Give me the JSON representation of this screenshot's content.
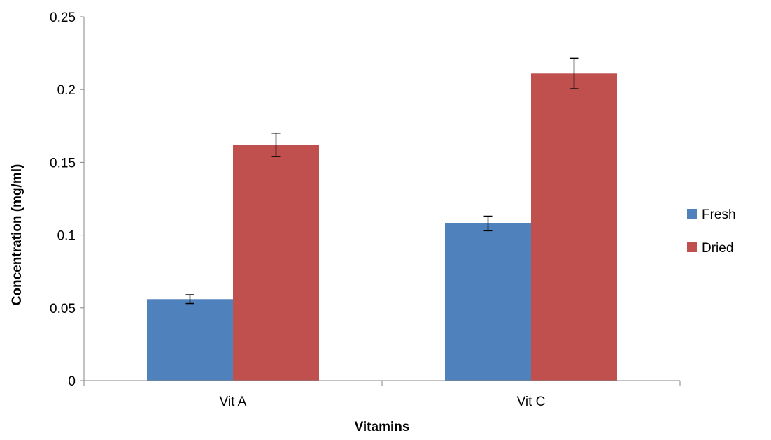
{
  "chart_data": {
    "type": "bar",
    "categories": [
      "Vit A",
      "Vit C"
    ],
    "series": [
      {
        "name": "Fresh",
        "values": [
          0.056,
          0.108
        ],
        "errors": [
          0.003,
          0.005
        ],
        "color": "#4F81BD"
      },
      {
        "name": "Dried",
        "values": [
          0.162,
          0.211
        ],
        "errors": [
          0.008,
          0.0105
        ],
        "color": "#C0504D"
      }
    ],
    "xlabel": "Vitamins",
    "ylabel": "Concentration (mg/ml)",
    "ylim": [
      0,
      0.25
    ],
    "yticks": [
      0,
      0.05,
      0.1,
      0.15,
      0.2,
      0.25
    ],
    "ytick_labels": [
      "0",
      "0.05",
      "0.1",
      "0.15",
      "0.2",
      "0.25"
    ],
    "grid": false,
    "legend_position": "right"
  }
}
